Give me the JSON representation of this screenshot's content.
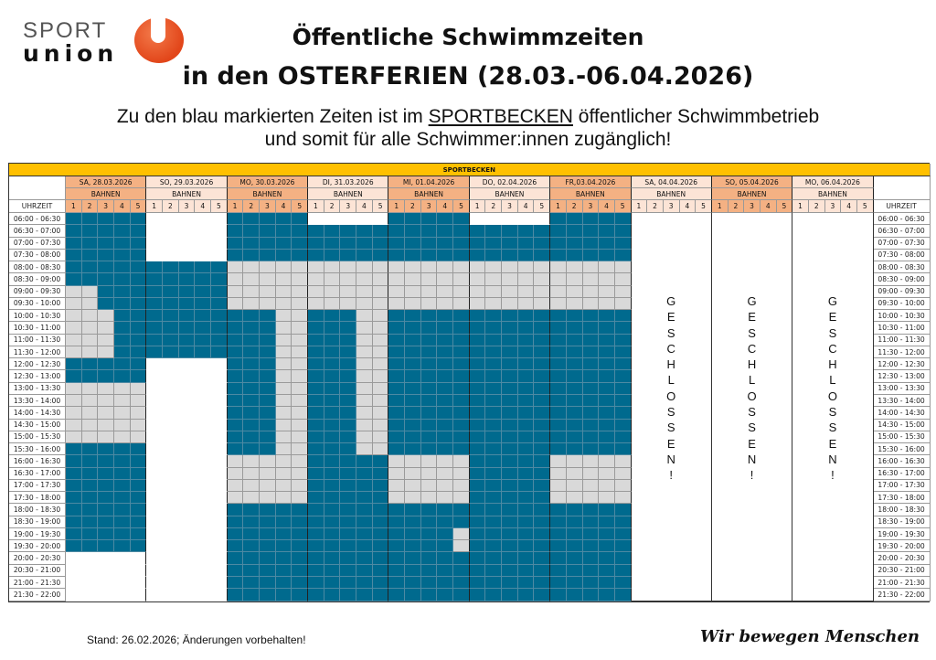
{
  "logo": {
    "line1": "SPORT",
    "line2": "union",
    "brand_color": "#e2461a"
  },
  "header": {
    "title": "Öffentliche Schwimmzeiten",
    "subtitle": "in den OSTERFERIEN (28.03.-06.04.2026)",
    "info_line1_before": "Zu den blau markierten Zeiten ist im ",
    "info_line1_link": "SPORTBECKEN",
    "info_line1_after": " öffentlicher Schwimmbetrieb",
    "info_line2": "und somit für alle Schwimmer:innen zugänglich!"
  },
  "table": {
    "pool": "SPORTBECKEN",
    "time_header": "UHRZEIT",
    "lanes_label": "BAHNEN",
    "lanes": [
      "1",
      "2",
      "3",
      "4",
      "5"
    ],
    "colors": {
      "public": "#006a8e",
      "unavailable": "#d9d9d9",
      "header": "#ffc000",
      "day_dark": "#f4b183",
      "day_light": "#fce4d6"
    },
    "legend_codes": {
      "B": "public",
      "G": "unavailable",
      "W": "empty"
    },
    "times": [
      "06:00 - 06:30",
      "06:30 - 07:00",
      "07:00 - 07:30",
      "07:30 - 08:00",
      "08:00 - 08:30",
      "08:30 - 09:00",
      "09:00 - 09:30",
      "09:30 - 10:00",
      "10:00 - 10:30",
      "10:30 - 11:00",
      "11:00 - 11:30",
      "11:30 - 12:00",
      "12:00 - 12:30",
      "12:30 - 13:00",
      "13:00 - 13:30",
      "13:30 - 14:00",
      "14:00 - 14:30",
      "14:30 - 15:00",
      "15:00 - 15:30",
      "15:30 - 16:00",
      "16:00 - 16:30",
      "16:30 - 17:00",
      "17:00 - 17:30",
      "17:30 - 18:00",
      "18:00 - 18:30",
      "18:30 - 19:00",
      "19:00 - 19:30",
      "19:30 - 20:00",
      "20:00 - 20:30",
      "20:30 - 21:00",
      "21:00 - 21:30",
      "21:30 - 22:00"
    ],
    "days": [
      {
        "label": "SA, 28.03.2026",
        "shade": "dark",
        "schedule": [
          [
            6,
            "BBBBB"
          ],
          [
            2,
            "GGBBB"
          ],
          [
            4,
            "GGGBB"
          ],
          [
            2,
            "BBBBB"
          ],
          [
            5,
            "GGGGG"
          ],
          [
            9,
            "BBBBB"
          ],
          [
            4,
            "WWWWW"
          ]
        ]
      },
      {
        "label": "SO, 29.03.2026",
        "shade": "light",
        "schedule": [
          [
            4,
            "WWWWW"
          ],
          [
            8,
            "BBBBB"
          ],
          [
            20,
            "WWWWW"
          ]
        ]
      },
      {
        "label": "MO, 30.03.2026",
        "shade": "dark",
        "schedule": [
          [
            4,
            "BBBBB"
          ],
          [
            4,
            "GGGGG"
          ],
          [
            12,
            "BBBGG"
          ],
          [
            4,
            "GGGGG"
          ],
          [
            8,
            "BBBBB"
          ]
        ]
      },
      {
        "label": "DI, 31.03.2026",
        "shade": "light",
        "schedule": [
          [
            1,
            "WWWWW"
          ],
          [
            3,
            "BBBBB"
          ],
          [
            4,
            "GGGGG"
          ],
          [
            12,
            "BBBGG"
          ],
          [
            12,
            "BBBBB"
          ]
        ]
      },
      {
        "label": "MI, 01.04.2026",
        "shade": "dark",
        "schedule": [
          [
            4,
            "BBBBB"
          ],
          [
            4,
            "GGGGG"
          ],
          [
            12,
            "BBBBB"
          ],
          [
            4,
            "GGGGG"
          ],
          [
            2,
            "BBBBB"
          ],
          [
            2,
            "BBBBG"
          ],
          [
            4,
            "BBBBB"
          ]
        ]
      },
      {
        "label": "DO, 02.04.2026",
        "shade": "light",
        "schedule": [
          [
            1,
            "WWWWW"
          ],
          [
            3,
            "BBBBB"
          ],
          [
            4,
            "GGGGG"
          ],
          [
            24,
            "BBBBB"
          ]
        ]
      },
      {
        "label": "FR,03.04.2026",
        "shade": "dark",
        "schedule": [
          [
            4,
            "BBBBB"
          ],
          [
            4,
            "GGGGG"
          ],
          [
            12,
            "BBBBB"
          ],
          [
            4,
            "GGGGG"
          ],
          [
            8,
            "BBBBB"
          ]
        ]
      },
      {
        "label": "SA, 04.04.2026",
        "shade": "light",
        "closed": "GESCHLOSSEN!"
      },
      {
        "label": "SO, 05.04.2026",
        "shade": "dark",
        "closed": "GESCHLOSSEN!"
      },
      {
        "label": "MO, 06.04.2026",
        "shade": "light",
        "closed": "GESCHLOSSEN!"
      }
    ]
  },
  "footer": {
    "stand": "Stand: 26.02.2026; Änderungen vorbehalten!",
    "slogan": "Wir bewegen Menschen"
  }
}
